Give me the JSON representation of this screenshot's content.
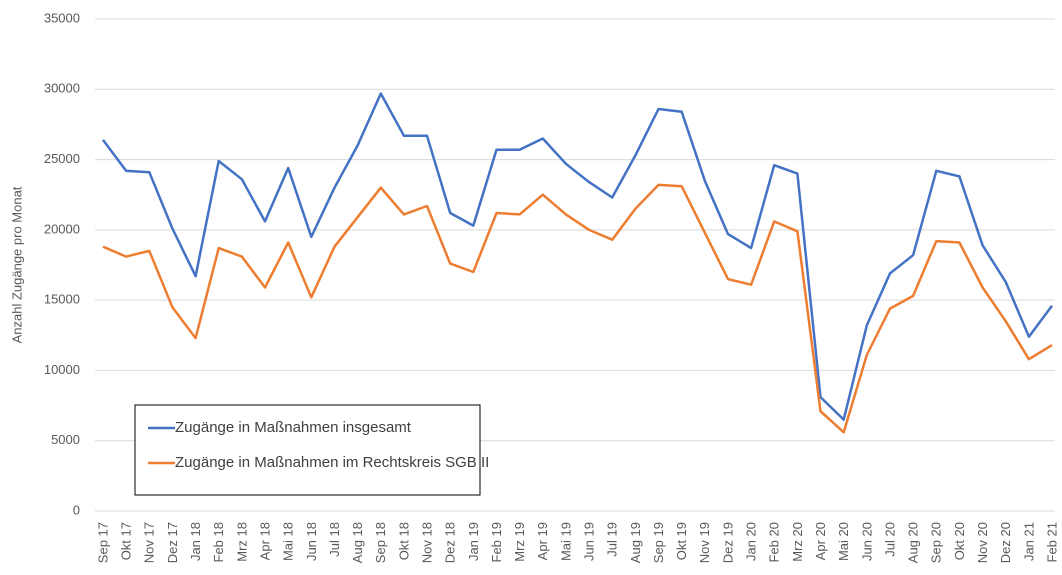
{
  "chart_data": {
    "type": "line",
    "y_label": "Anzahl Zugänge pro Monat",
    "categories": [
      "Sep 17",
      "Okt 17",
      "Nov 17",
      "Dez 17",
      "Jan 18",
      "Feb 18",
      "Mrz 18",
      "Apr 18",
      "Mai 18",
      "Jun 18",
      "Jul 18",
      "Aug 18",
      "Sep 18",
      "Okt 18",
      "Nov 18",
      "Dez 18",
      "Jan 19",
      "Feb 19",
      "Mrz 19",
      "Apr 19",
      "Mai 19",
      "Jun 19",
      "Jul 19",
      "Aug 19",
      "Sep 19",
      "Okt 19",
      "Nov 19",
      "Dez 19",
      "Jan 20",
      "Feb 20",
      "Mrz 20",
      "Apr 20",
      "Mai 20",
      "Jun 20",
      "Jul 20",
      "Aug 20",
      "Sep 20",
      "Okt 20",
      "Nov 20",
      "Dez 20",
      "Jan 21",
      "Feb 21"
    ],
    "series": [
      {
        "name": "Zugänge in Maßnahmen insgesamt",
        "color": "#4472c4",
        "values": [
          26400,
          24200,
          24100,
          20100,
          16700,
          24900,
          23600,
          20600,
          24400,
          19500,
          23000,
          26000,
          29700,
          26700,
          26700,
          21200,
          20300,
          25700,
          25700,
          26500,
          24700,
          23400,
          22300,
          25300,
          28600,
          28400,
          23500,
          19700,
          18700,
          24600,
          24000,
          8100,
          6500,
          13200,
          16900,
          18200,
          24200,
          23800,
          18900,
          16300,
          12400,
          14600
        ]
      },
      {
        "name": "Zugänge in Maßnahmen im Rechtskreis SGB II",
        "color": "#ed7d31",
        "values": [
          18800,
          18100,
          18500,
          14500,
          12300,
          18700,
          18100,
          15900,
          19100,
          15200,
          18800,
          20900,
          23000,
          21100,
          21700,
          17600,
          17000,
          21200,
          21100,
          22500,
          21100,
          20000,
          19300,
          21500,
          23200,
          23100,
          19800,
          16500,
          16100,
          20600,
          19900,
          7100,
          5600,
          11100,
          14400,
          15300,
          19200,
          19100,
          15900,
          13500,
          10800,
          11800
        ]
      }
    ],
    "ylim": [
      0,
      35000
    ],
    "yticks": [
      0,
      5000,
      10000,
      15000,
      20000,
      25000,
      30000,
      35000
    ],
    "grid": true,
    "legend_position": "lower left"
  }
}
